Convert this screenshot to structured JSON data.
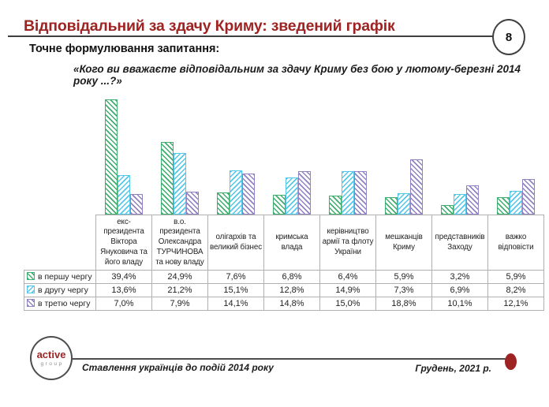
{
  "header": {
    "title": "Відповідальний за здачу Криму: зведений графік",
    "page_number": "8"
  },
  "question": {
    "label": "Точне формулювання запитання:",
    "quote": "«Кого ви вважаєте відповідальним за здачу Криму без бою у лютому-березні 2014 року ...?»"
  },
  "chart_data": {
    "type": "bar",
    "title": "",
    "xlabel": "",
    "ylabel": "",
    "ylim": [
      0,
      44
    ],
    "grid": false,
    "legend_position": "left-of-table-rows",
    "categories": [
      "екс-президента Віктора Януковича та його владу",
      "в.о. президента Олександра ТУРЧИНОВА та нову владу",
      "олігархів та великий бізнес",
      "кримська влада",
      "керівництво армії та флоту України",
      "мешканців Криму",
      "представників Заходу",
      "важко відповісти"
    ],
    "series": [
      {
        "name": "в першу чергу",
        "color": "#3FAE6E",
        "hatch": "\\",
        "values": [
          39.4,
          24.9,
          7.6,
          6.8,
          6.4,
          5.9,
          3.2,
          5.9
        ],
        "labels": [
          "39,4%",
          "24,9%",
          "7,6%",
          "6,8%",
          "6,4%",
          "5,9%",
          "3,2%",
          "5,9%"
        ]
      },
      {
        "name": "в другу чергу",
        "color": "#55C7EA",
        "hatch": "/",
        "values": [
          13.6,
          21.2,
          15.1,
          12.8,
          14.9,
          7.3,
          6.9,
          8.2
        ],
        "labels": [
          "13,6%",
          "21,2%",
          "15,1%",
          "12,8%",
          "14,9%",
          "7,3%",
          "6,9%",
          "8,2%"
        ]
      },
      {
        "name": "в третю чергу",
        "color": "#9182C4",
        "hatch": "\\",
        "values": [
          7.0,
          7.9,
          14.1,
          14.8,
          15.0,
          18.8,
          10.1,
          12.1
        ],
        "labels": [
          "7,0%",
          "7,9%",
          "14,1%",
          "14,8%",
          "15,0%",
          "18,8%",
          "10,1%",
          "12,1%"
        ]
      }
    ]
  },
  "footer": {
    "logo_primary": "active",
    "logo_secondary": "group",
    "left_text": "Ставлення українців до подій 2014 року",
    "right_text": "Грудень, 2021 р."
  },
  "colors": {
    "accent_red": "#9E2323",
    "line_dark": "#3f3f3f",
    "table_border": "#b0b0b0",
    "series_green": "#3FAE6E",
    "series_cyan": "#55C7EA",
    "series_purple": "#9182C4"
  }
}
